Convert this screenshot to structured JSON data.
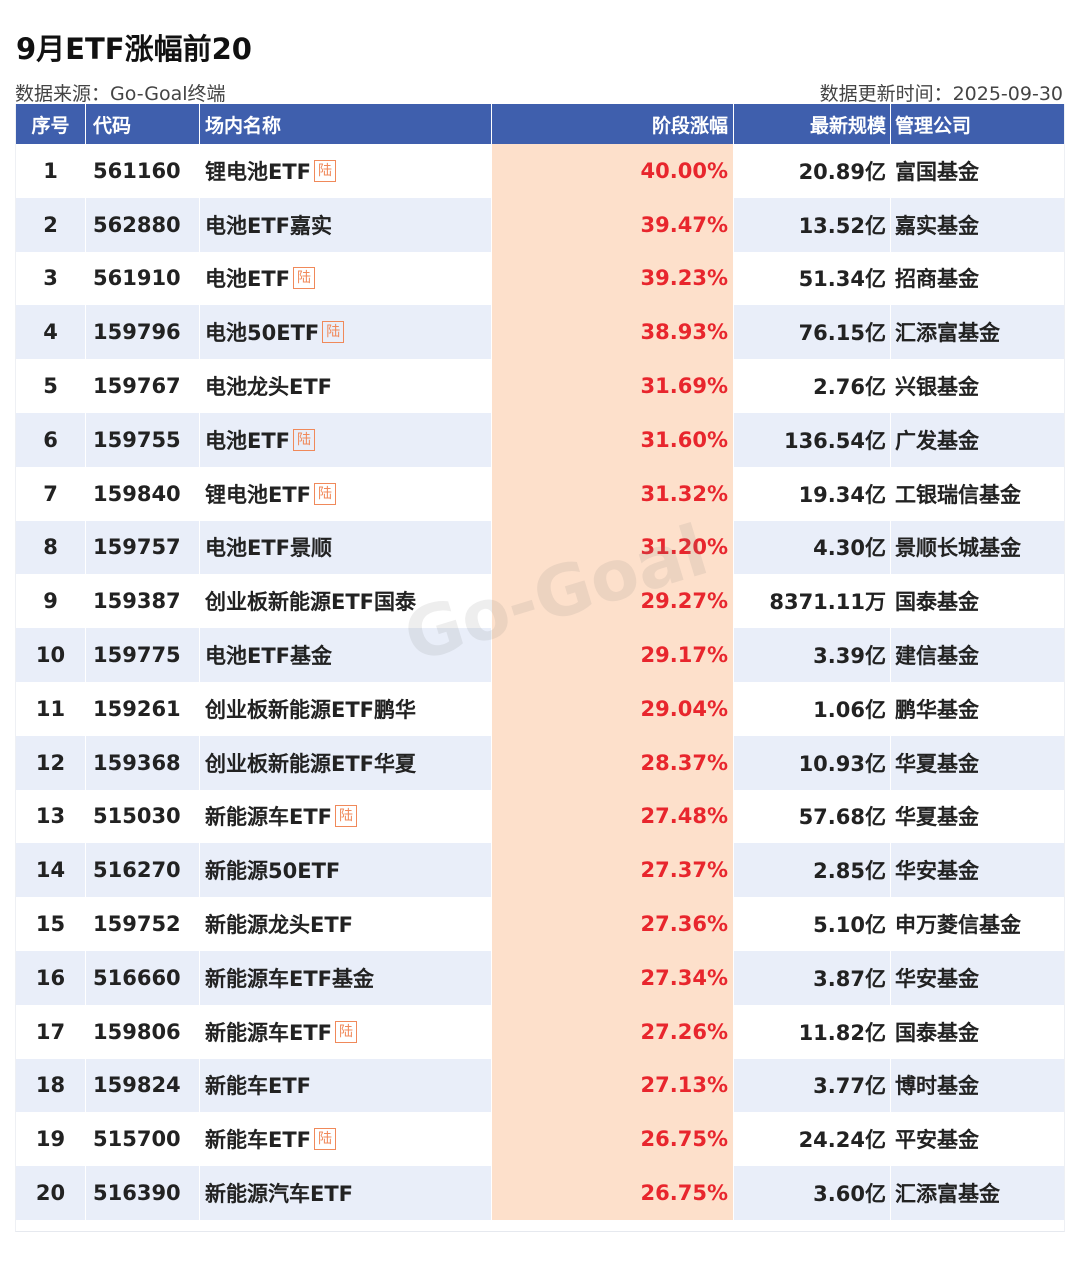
{
  "title": "9月ETF涨幅前20",
  "source": "数据来源：Go-Goal终端",
  "update_time": "数据更新时间：2025-09-30",
  "watermark": "Go-Goal",
  "headers": [
    "序号",
    "代码",
    "场内名称",
    "阶段涨幅",
    "最新规模",
    "管理公司"
  ],
  "tag_label": "陆",
  "rows": [
    {
      "no": "1",
      "code": "561160",
      "name": "锂电池ETF",
      "tag": true,
      "gain": "40.00%",
      "size": "20.89亿",
      "company": "富国基金"
    },
    {
      "no": "2",
      "code": "562880",
      "name": "电池ETF嘉实",
      "tag": false,
      "gain": "39.47%",
      "size": "13.52亿",
      "company": "嘉实基金"
    },
    {
      "no": "3",
      "code": "561910",
      "name": "电池ETF",
      "tag": true,
      "gain": "39.23%",
      "size": "51.34亿",
      "company": "招商基金"
    },
    {
      "no": "4",
      "code": "159796",
      "name": "电池50ETF",
      "tag": true,
      "gain": "38.93%",
      "size": "76.15亿",
      "company": "汇添富基金"
    },
    {
      "no": "5",
      "code": "159767",
      "name": "电池龙头ETF",
      "tag": false,
      "gain": "31.69%",
      "size": "2.76亿",
      "company": "兴银基金"
    },
    {
      "no": "6",
      "code": "159755",
      "name": "电池ETF",
      "tag": true,
      "gain": "31.60%",
      "size": "136.54亿",
      "company": "广发基金"
    },
    {
      "no": "7",
      "code": "159840",
      "name": "锂电池ETF",
      "tag": true,
      "gain": "31.32%",
      "size": "19.34亿",
      "company": "工银瑞信基金"
    },
    {
      "no": "8",
      "code": "159757",
      "name": "电池ETF景顺",
      "tag": false,
      "gain": "31.20%",
      "size": "4.30亿",
      "company": "景顺长城基金"
    },
    {
      "no": "9",
      "code": "159387",
      "name": "创业板新能源ETF国泰",
      "tag": false,
      "gain": "29.27%",
      "size": "8371.11万",
      "company": "国泰基金"
    },
    {
      "no": "10",
      "code": "159775",
      "name": "电池ETF基金",
      "tag": false,
      "gain": "29.17%",
      "size": "3.39亿",
      "company": "建信基金"
    },
    {
      "no": "11",
      "code": "159261",
      "name": "创业板新能源ETF鹏华",
      "tag": false,
      "gain": "29.04%",
      "size": "1.06亿",
      "company": "鹏华基金"
    },
    {
      "no": "12",
      "code": "159368",
      "name": "创业板新能源ETF华夏",
      "tag": false,
      "gain": "28.37%",
      "size": "10.93亿",
      "company": "华夏基金"
    },
    {
      "no": "13",
      "code": "515030",
      "name": "新能源车ETF",
      "tag": true,
      "gain": "27.48%",
      "size": "57.68亿",
      "company": "华夏基金"
    },
    {
      "no": "14",
      "code": "516270",
      "name": "新能源50ETF",
      "tag": false,
      "gain": "27.37%",
      "size": "2.85亿",
      "company": "华安基金"
    },
    {
      "no": "15",
      "code": "159752",
      "name": "新能源龙头ETF",
      "tag": false,
      "gain": "27.36%",
      "size": "5.10亿",
      "company": "申万菱信基金"
    },
    {
      "no": "16",
      "code": "516660",
      "name": "新能源车ETF基金",
      "tag": false,
      "gain": "27.34%",
      "size": "3.87亿",
      "company": "华安基金"
    },
    {
      "no": "17",
      "code": "159806",
      "name": "新能源车ETF",
      "tag": true,
      "gain": "27.26%",
      "size": "11.82亿",
      "company": "国泰基金"
    },
    {
      "no": "18",
      "code": "159824",
      "name": "新能车ETF",
      "tag": false,
      "gain": "27.13%",
      "size": "3.77亿",
      "company": "博时基金"
    },
    {
      "no": "19",
      "code": "515700",
      "name": "新能车ETF",
      "tag": true,
      "gain": "26.75%",
      "size": "24.24亿",
      "company": "平安基金"
    },
    {
      "no": "20",
      "code": "516390",
      "name": "新能源汽车ETF",
      "tag": false,
      "gain": "26.75%",
      "size": "3.60亿",
      "company": "汇添富基金"
    }
  ],
  "colors": {
    "header_bg": "#3f5fad",
    "gain_bg": "#fde0cb",
    "gain_text": "#e8262d",
    "stripe": "#e9eef9",
    "tag": "#f0895a"
  }
}
